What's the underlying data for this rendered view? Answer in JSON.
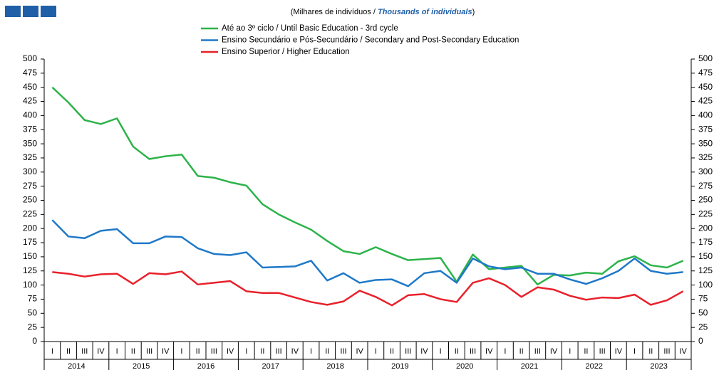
{
  "chart_data": {
    "type": "line",
    "subtitle": [
      "(Milhares de indivíduos / ",
      "Thousands of individuals",
      ")"
    ],
    "categories": [
      "I",
      "II",
      "III",
      "IV",
      "I",
      "II",
      "III",
      "IV",
      "I",
      "II",
      "III",
      "IV",
      "I",
      "II",
      "III",
      "IV",
      "I",
      "II",
      "III",
      "IV",
      "I",
      "II",
      "III",
      "IV",
      "I",
      "II",
      "III",
      "IV",
      "I",
      "II",
      "III",
      "IV",
      "I",
      "II",
      "III",
      "IV",
      "I",
      "II",
      "III",
      "IV"
    ],
    "groups": [
      "2014",
      "2015",
      "2016",
      "2017",
      "2018",
      "2019",
      "2020",
      "2021",
      "2022",
      "2023"
    ],
    "series": [
      {
        "name": "Até ao 3º ciclo / Until Basic Education - 3rd cycle",
        "color": "#2db34a",
        "values": [
          450,
          423,
          392,
          385,
          395,
          345,
          323,
          328,
          331,
          293,
          290,
          282,
          276,
          243,
          225,
          211,
          198,
          178,
          160,
          155,
          167,
          155,
          144,
          146,
          148,
          106,
          154,
          128,
          131,
          134,
          101,
          118,
          117,
          122,
          120,
          142,
          151,
          135,
          131,
          143
        ]
      },
      {
        "name": "Ensino Secundário e Pós-Secundário / Secondary and Post-Secondary Education",
        "color": "#1f78c8",
        "values": [
          215,
          186,
          183,
          196,
          199,
          174,
          174,
          186,
          185,
          165,
          155,
          153,
          158,
          131,
          132,
          133,
          143,
          108,
          121,
          104,
          109,
          110,
          98,
          121,
          125,
          104,
          147,
          133,
          128,
          131,
          120,
          120,
          110,
          102,
          112,
          125,
          147,
          125,
          120,
          123
        ]
      },
      {
        "name": "Ensino Superior / Higher Education",
        "color": "#e8212b",
        "values": [
          123,
          120,
          115,
          119,
          120,
          102,
          121,
          119,
          124,
          101,
          104,
          107,
          89,
          86,
          86,
          78,
          70,
          65,
          71,
          90,
          79,
          64,
          82,
          84,
          75,
          70,
          104,
          112,
          100,
          79,
          96,
          92,
          81,
          74,
          78,
          77,
          83,
          65,
          73,
          89
        ]
      }
    ],
    "ylim": [
      0,
      500
    ],
    "yticks": [
      0,
      25,
      50,
      75,
      100,
      125,
      150,
      175,
      200,
      225,
      250,
      275,
      300,
      325,
      350,
      375,
      400,
      425,
      450,
      475,
      500
    ]
  }
}
